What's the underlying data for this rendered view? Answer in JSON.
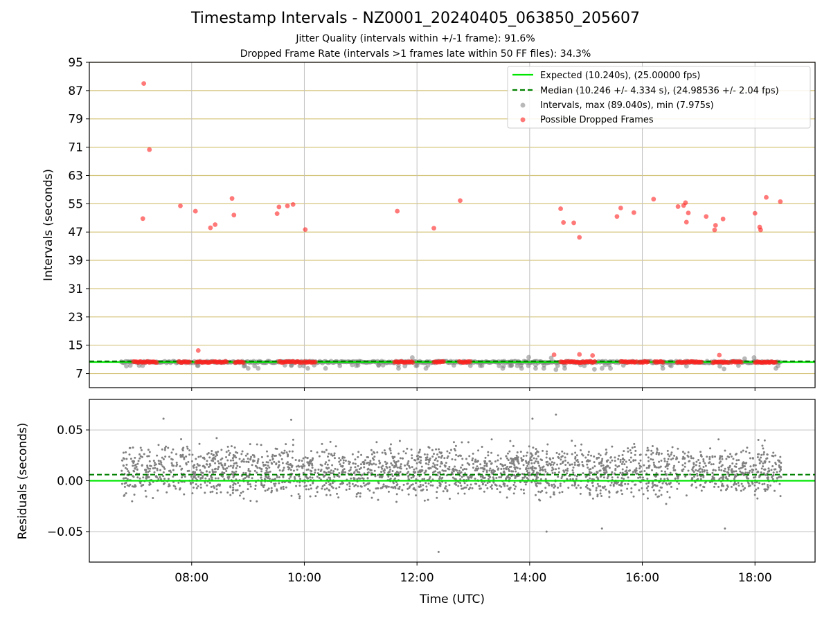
{
  "title": "Timestamp Intervals - NZ0001_20240405_063850_205607",
  "subtitle_1": "Jitter Quality (intervals within +/-1 frame): 91.6%",
  "subtitle_2": "Dropped Frame Rate (intervals >1 frames late within 50 FF files): 34.3%",
  "colors": {
    "expected": "#00e600",
    "median": "#008000",
    "intervals": "#808080",
    "dropped": "#ff2020",
    "hgrid_top": "#d4c47a",
    "grid": "#c0c0c0"
  },
  "chart_data": [
    {
      "type": "scatter",
      "panel": "intervals",
      "ylabel": "Intervals (seconds)",
      "xlabel": "",
      "xlim": [
        "06:11",
        "19:04"
      ],
      "ylim": [
        3,
        95
      ],
      "yticks": [
        7,
        15,
        23,
        31,
        39,
        47,
        55,
        63,
        71,
        79,
        87,
        95
      ],
      "xticks": [
        "08:00",
        "10:00",
        "12:00",
        "14:00",
        "16:00",
        "18:00"
      ],
      "grid": true,
      "legend_position": "upper right",
      "expected_line": {
        "label": "Expected (10.240s), (25.00000 fps)",
        "y": 10.24
      },
      "median_line": {
        "label": "Median (10.246 +/- 4.334 s), (24.98536 +/- 2.04 fps)",
        "y": 10.246
      },
      "intervals_series": {
        "label": "Intervals, max (89.040s), min (7.975s)",
        "x_range": [
          "06:45",
          "18:28"
        ],
        "baseline": 10.24,
        "notable_points": [
          {
            "x": "11:55",
            "y": 11.5
          },
          {
            "x": "13:59",
            "y": 11.6
          },
          {
            "x": "14:23",
            "y": 11.4
          },
          {
            "x": "14:28",
            "y": 8.1
          },
          {
            "x": "15:09",
            "y": 8.2
          },
          {
            "x": "17:27",
            "y": 8.3
          },
          {
            "x": "17:59",
            "y": 11.5
          },
          {
            "x": "17:49",
            "y": 11.2
          }
        ]
      },
      "dropped_series": {
        "label": "Possible Dropped Frames",
        "points": [
          {
            "x": "07:09",
            "y": 89.0
          },
          {
            "x": "07:08",
            "y": 50.8
          },
          {
            "x": "07:15",
            "y": 70.3
          },
          {
            "x": "07:48",
            "y": 54.4
          },
          {
            "x": "08:04",
            "y": 52.9
          },
          {
            "x": "08:07",
            "y": 13.5
          },
          {
            "x": "08:20",
            "y": 48.2
          },
          {
            "x": "08:25",
            "y": 49.1
          },
          {
            "x": "08:43",
            "y": 56.5
          },
          {
            "x": "08:45",
            "y": 51.8
          },
          {
            "x": "09:31",
            "y": 52.2
          },
          {
            "x": "09:33",
            "y": 54.1
          },
          {
            "x": "09:42",
            "y": 54.4
          },
          {
            "x": "09:48",
            "y": 54.8
          },
          {
            "x": "10:01",
            "y": 47.7
          },
          {
            "x": "11:39",
            "y": 52.9
          },
          {
            "x": "12:18",
            "y": 48.1
          },
          {
            "x": "12:46",
            "y": 55.9
          },
          {
            "x": "14:26",
            "y": 12.3
          },
          {
            "x": "14:33",
            "y": 53.6
          },
          {
            "x": "14:36",
            "y": 49.7
          },
          {
            "x": "14:47",
            "y": 49.6
          },
          {
            "x": "14:53",
            "y": 45.5
          },
          {
            "x": "14:53",
            "y": 12.4
          },
          {
            "x": "15:07",
            "y": 12.1
          },
          {
            "x": "15:33",
            "y": 51.4
          },
          {
            "x": "15:37",
            "y": 53.8
          },
          {
            "x": "15:51",
            "y": 52.5
          },
          {
            "x": "16:12",
            "y": 56.3
          },
          {
            "x": "16:38",
            "y": 54.2
          },
          {
            "x": "16:44",
            "y": 54.5
          },
          {
            "x": "16:46",
            "y": 55.3
          },
          {
            "x": "16:47",
            "y": 49.8
          },
          {
            "x": "16:49",
            "y": 52.4
          },
          {
            "x": "17:08",
            "y": 51.4
          },
          {
            "x": "17:17",
            "y": 47.6
          },
          {
            "x": "17:18",
            "y": 48.9
          },
          {
            "x": "17:22",
            "y": 12.2
          },
          {
            "x": "17:26",
            "y": 50.7
          },
          {
            "x": "18:00",
            "y": 52.3
          },
          {
            "x": "18:05",
            "y": 48.4
          },
          {
            "x": "18:06",
            "y": 47.6
          },
          {
            "x": "18:12",
            "y": 56.8
          },
          {
            "x": "18:27",
            "y": 55.6
          }
        ],
        "baseline_clusters": [
          [
            "06:58",
            "07:24"
          ],
          [
            "07:46",
            "07:59"
          ],
          [
            "08:05",
            "08:21"
          ],
          [
            "08:23",
            "08:38"
          ],
          [
            "08:46",
            "08:56"
          ],
          [
            "09:33",
            "09:58"
          ],
          [
            "10:00",
            "10:12"
          ],
          [
            "11:36",
            "11:56"
          ],
          [
            "12:18",
            "12:29"
          ],
          [
            "12:45",
            "12:57"
          ],
          [
            "14:33",
            "15:10"
          ],
          [
            "15:37",
            "15:54"
          ],
          [
            "15:57",
            "16:07"
          ],
          [
            "16:13",
            "16:23"
          ],
          [
            "16:37",
            "17:03"
          ],
          [
            "17:15",
            "17:32"
          ],
          [
            "17:35",
            "17:46"
          ],
          [
            "18:00",
            "18:23"
          ]
        ]
      }
    },
    {
      "type": "scatter",
      "panel": "residuals",
      "ylabel": "Residuals (seconds)",
      "xlabel": "Time (UTC)",
      "xlim": [
        "06:11",
        "19:04"
      ],
      "ylim": [
        -0.08,
        0.08
      ],
      "yticks": [
        0.05,
        0.0,
        -0.05
      ],
      "ytick_labels": [
        "0.05",
        "0.00",
        "−0.05"
      ],
      "xticks": [
        "08:00",
        "10:00",
        "12:00",
        "14:00",
        "16:00",
        "18:00"
      ],
      "grid": true,
      "zero_line": 0.0,
      "median_line": 0.006,
      "residuals_series": {
        "x_range": [
          "06:45",
          "18:28"
        ],
        "min": -0.07,
        "max": 0.065,
        "notable_points": [
          {
            "x": "12:23",
            "y": -0.07
          },
          {
            "x": "14:28",
            "y": 0.065
          },
          {
            "x": "07:30",
            "y": 0.061
          },
          {
            "x": "14:18",
            "y": -0.05
          },
          {
            "x": "15:17",
            "y": -0.047
          },
          {
            "x": "17:28",
            "y": -0.047
          },
          {
            "x": "14:03",
            "y": 0.061
          },
          {
            "x": "09:46",
            "y": 0.06
          }
        ]
      }
    }
  ]
}
